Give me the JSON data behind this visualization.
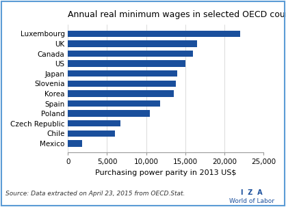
{
  "title": "Annual real minimum wages in selected OECD countries",
  "countries": [
    "Luxembourg",
    "UK",
    "Canada",
    "US",
    "Japan",
    "Slovenia",
    "Korea",
    "Spain",
    "Poland",
    "Czech Republic",
    "Chile",
    "Mexico"
  ],
  "values": [
    22000,
    16500,
    16000,
    15000,
    14000,
    13800,
    13500,
    11800,
    10500,
    6700,
    6000,
    1800
  ],
  "bar_color": "#1a4f9c",
  "xlabel": "Purchasing power parity in 2013 US$",
  "xlim": [
    0,
    25000
  ],
  "xticks": [
    0,
    5000,
    10000,
    15000,
    20000,
    25000
  ],
  "xtick_labels": [
    "0",
    "5,000",
    "10,000",
    "15,000",
    "20,000",
    "25,000"
  ],
  "source_text": "Source: Data extracted on April 23, 2015 from OECD.Stat.",
  "logo_line1": "I  Z  A",
  "logo_line2": "World of Labor",
  "background_color": "#ffffff",
  "border_color": "#5b9bd5",
  "fig_width": 4.18,
  "fig_height": 3.03,
  "dpi": 100
}
